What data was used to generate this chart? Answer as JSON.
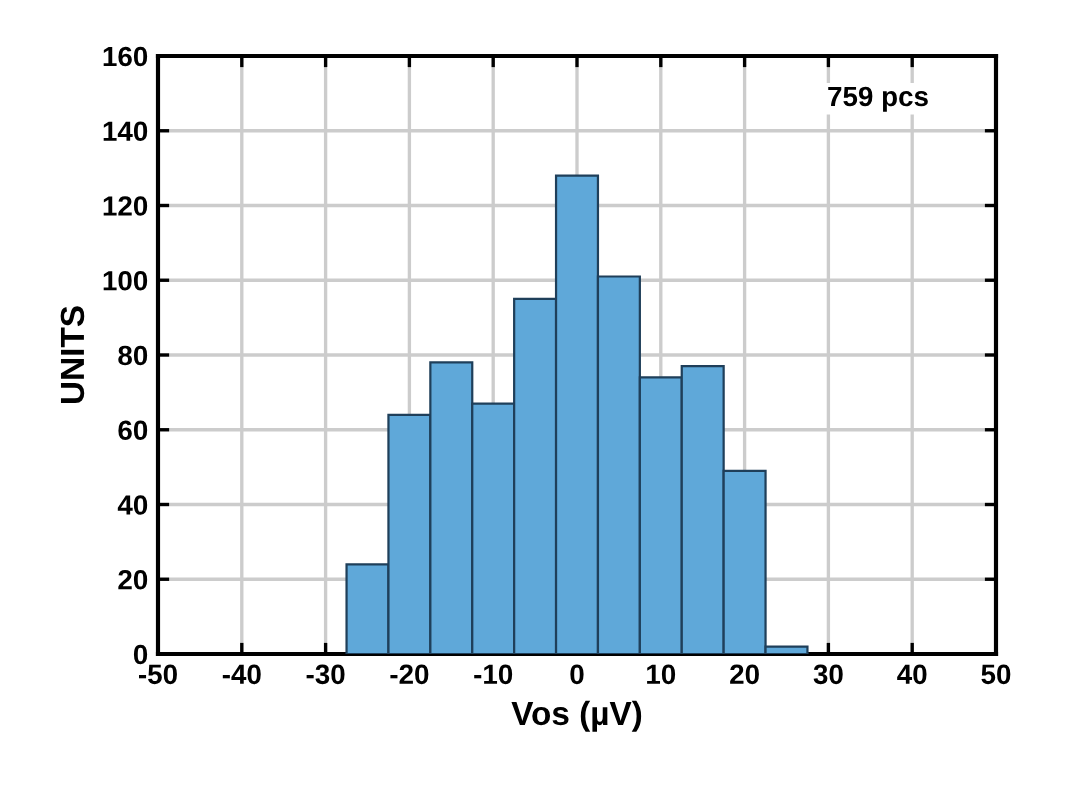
{
  "chart_data": {
    "type": "histogram",
    "bins": [
      -27.5,
      -22.5,
      -17.5,
      -12.5,
      -7.5,
      -2.5,
      2.5,
      7.5,
      12.5,
      17.5,
      22.5,
      27.5
    ],
    "values": [
      24,
      64,
      78,
      67,
      95,
      128,
      101,
      74,
      77,
      49,
      2
    ],
    "color": "#5fa8d9",
    "xlabel": "Vos (µV)",
    "ylabel": "UNITS",
    "annotations": [
      "759 pcs"
    ],
    "xlim": [
      -50,
      50
    ],
    "xticks": [
      -50,
      -40,
      -30,
      -20,
      -10,
      0,
      10,
      20,
      30,
      40,
      50
    ],
    "ylim": [
      0,
      160
    ],
    "yticks": [
      0,
      20,
      40,
      60,
      80,
      100,
      120,
      140,
      160
    ],
    "grid": true
  }
}
